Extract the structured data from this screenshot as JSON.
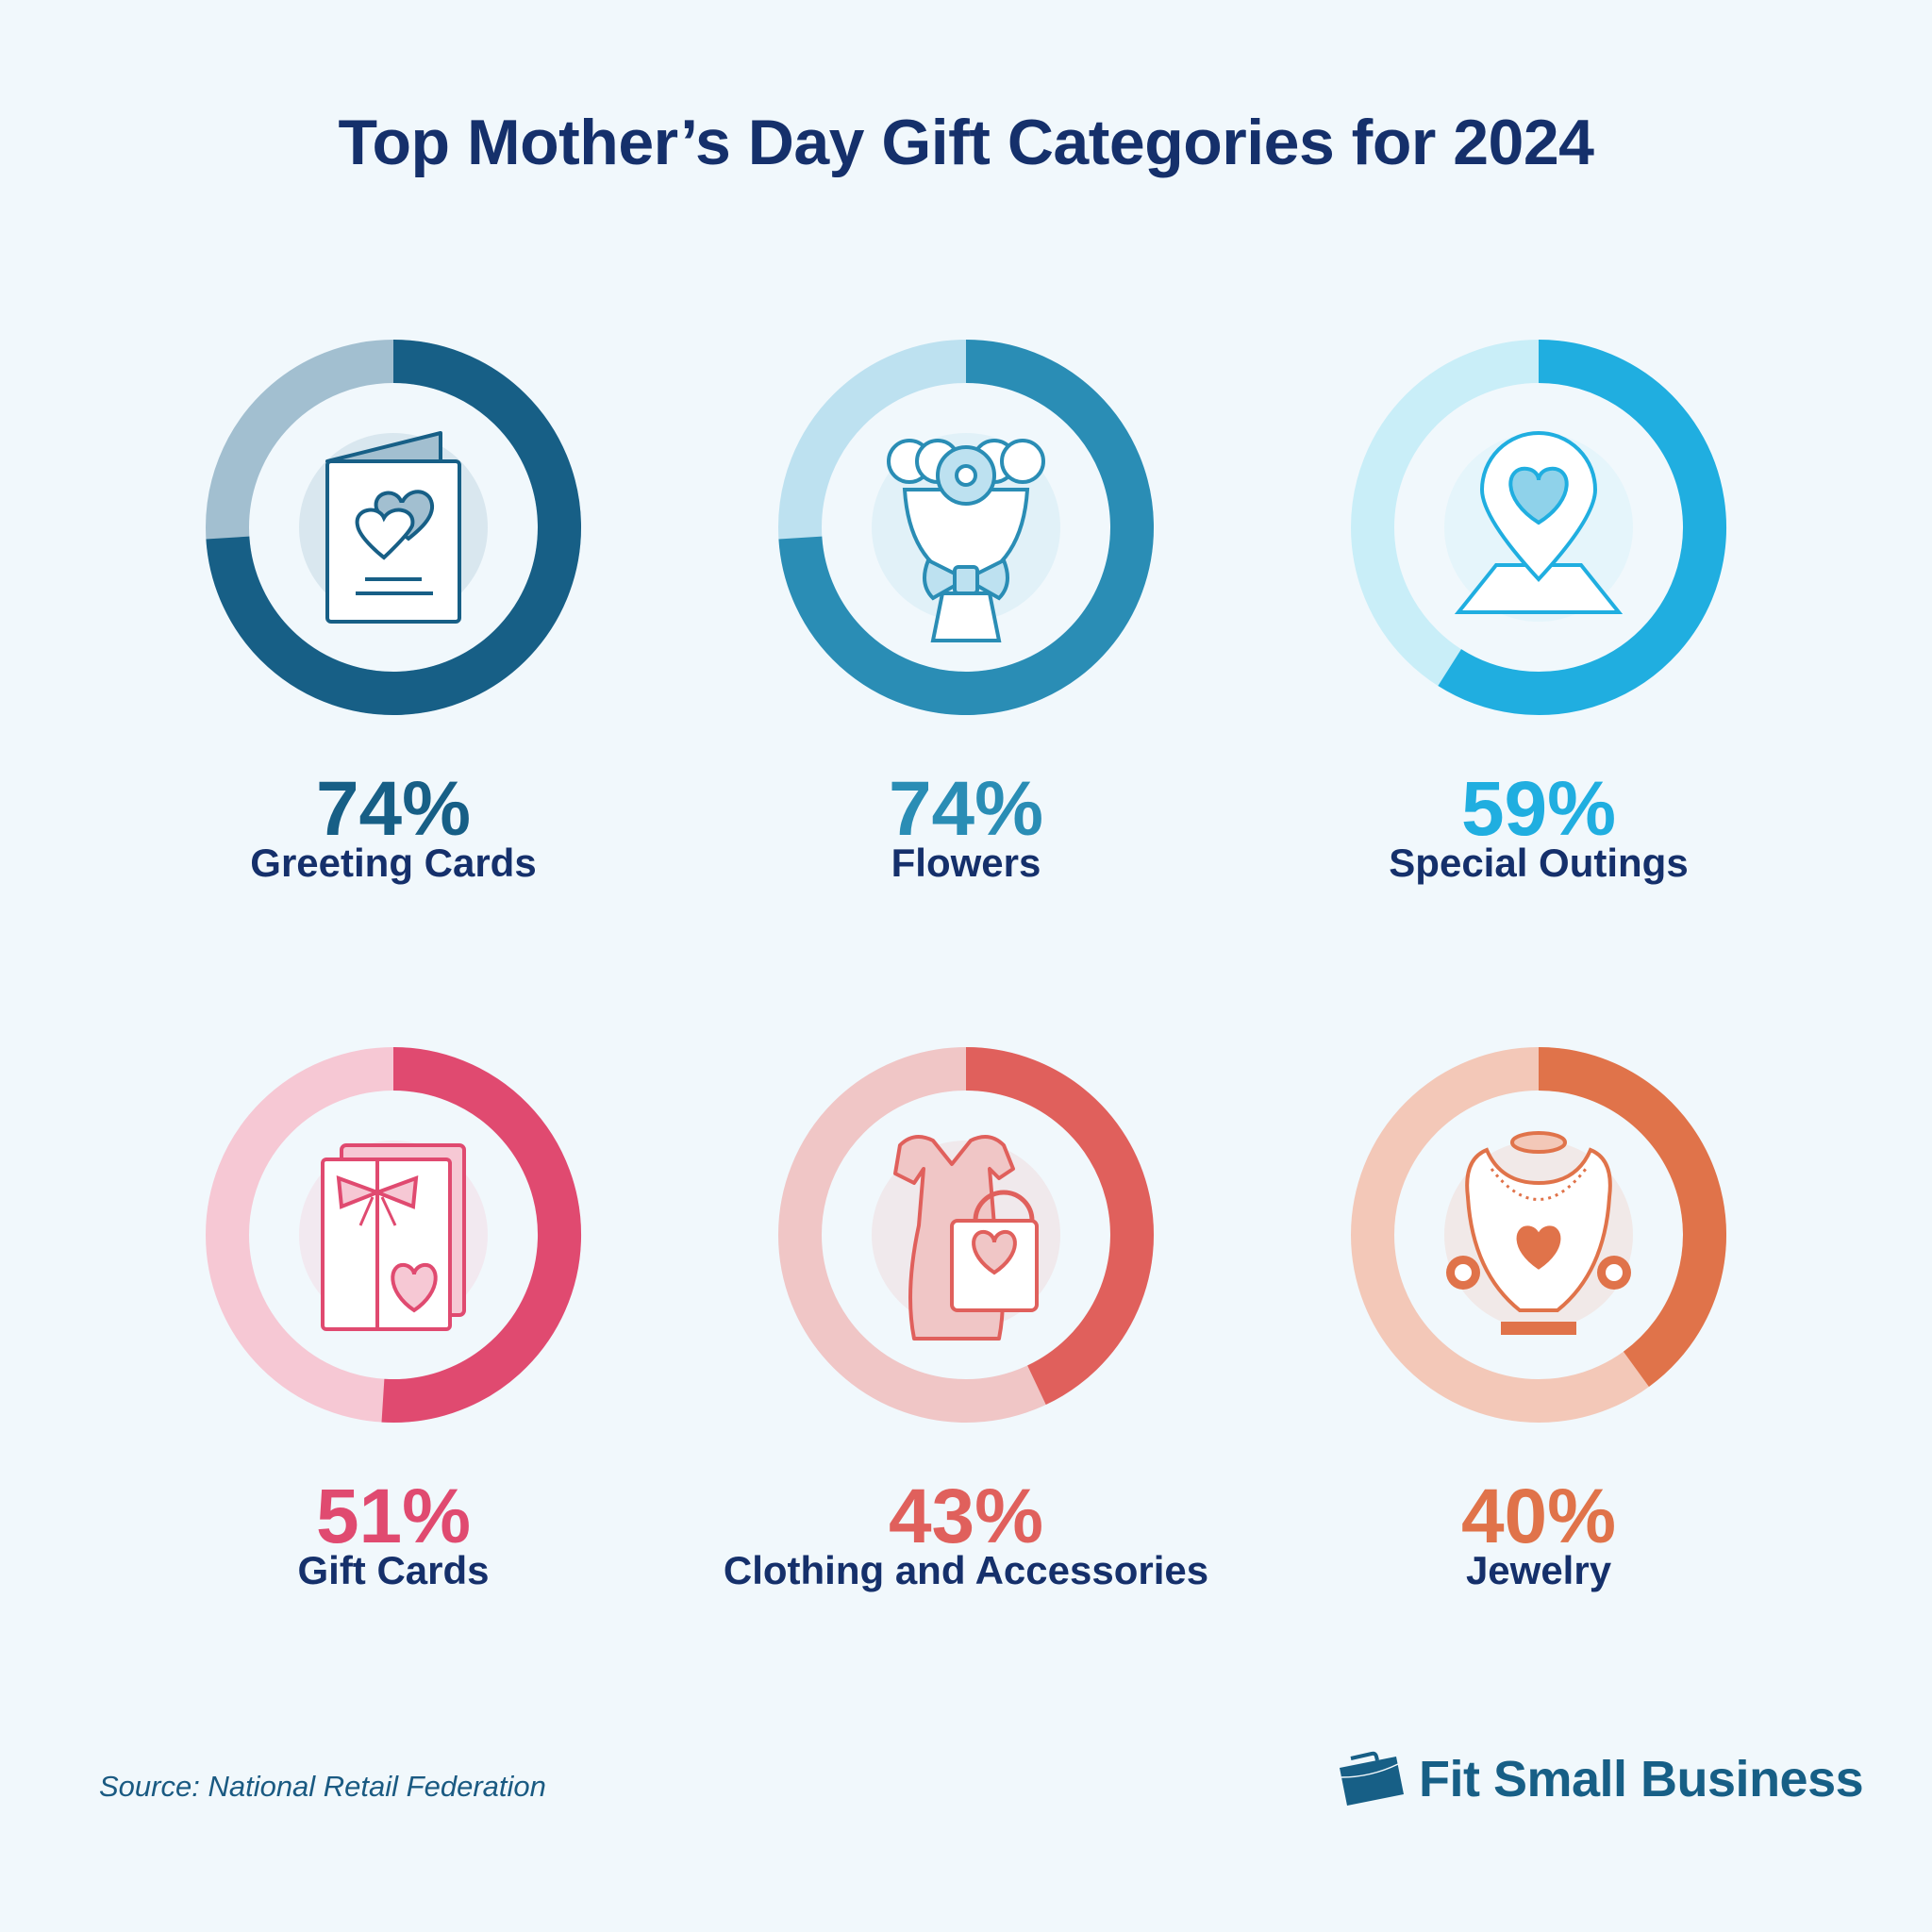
{
  "title": "Top Mother’s Day Gift Categories for 2024",
  "chart_data": {
    "type": "donut",
    "title": "Top Mother’s Day Gift Categories for 2024",
    "unit": "%",
    "items": [
      {
        "label": "Greeting Cards",
        "value": 74,
        "value_label": "74%",
        "color": "#175f86",
        "track": "#a2bfd0",
        "icon": "greeting-card-icon"
      },
      {
        "label": "Flowers",
        "value": 74,
        "value_label": "74%",
        "color": "#2a8db5",
        "track": "#bde1f0",
        "icon": "bouquet-icon"
      },
      {
        "label": "Special Outings",
        "value": 59,
        "value_label": "59%",
        "color": "#20aee0",
        "track": "#c9eef8",
        "icon": "map-pin-heart-icon"
      },
      {
        "label": "Gift Cards",
        "value": 51,
        "value_label": "51%",
        "color": "#e04a70",
        "track": "#f6c8d4",
        "icon": "gift-card-icon"
      },
      {
        "label": "Clothing and Accessories",
        "value": 43,
        "value_label": "43%",
        "color": "#e0605c",
        "track": "#f0c6c6",
        "icon": "dress-bag-icon"
      },
      {
        "label": "Jewelry",
        "value": 40,
        "value_label": "40%",
        "color": "#e0734a",
        "track": "#f3c8b8",
        "icon": "necklace-icon"
      }
    ]
  },
  "source": "Source:  National Retail Federation",
  "brand": "Fit Small Business"
}
